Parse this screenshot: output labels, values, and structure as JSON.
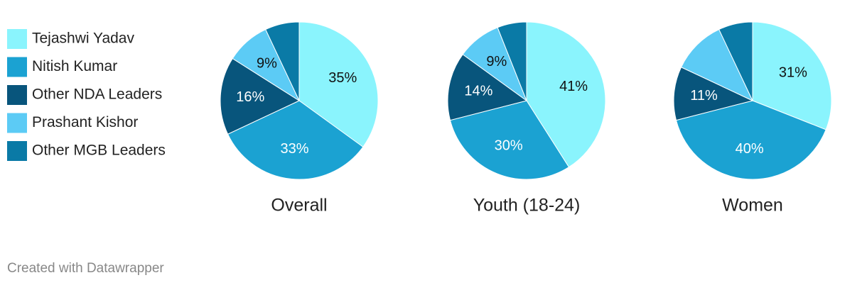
{
  "chart_data": [
    {
      "type": "pie",
      "title": "Overall",
      "categories": [
        "Tejashwi Yadav",
        "Nitish Kumar",
        "Other NDA Leaders",
        "Prashant Kishor",
        "Other MGB Leaders"
      ],
      "colors": [
        "#8af4fd",
        "#1ba2d2",
        "#08557c",
        "#5ccbf5",
        "#0a7aa6"
      ],
      "values": [
        35,
        33,
        16,
        9,
        7
      ],
      "value_labels": [
        "35%",
        "33%",
        "16%",
        "9%",
        null
      ]
    },
    {
      "type": "pie",
      "title": "Youth (18-24)",
      "categories": [
        "Tejashwi Yadav",
        "Nitish Kumar",
        "Other NDA Leaders",
        "Prashant Kishor",
        "Other MGB Leaders"
      ],
      "colors": [
        "#8af4fd",
        "#1ba2d2",
        "#08557c",
        "#5ccbf5",
        "#0a7aa6"
      ],
      "values": [
        41,
        30,
        14,
        9,
        6
      ],
      "value_labels": [
        "41%",
        "30%",
        "14%",
        "9%",
        null
      ]
    },
    {
      "type": "pie",
      "title": "Women",
      "categories": [
        "Tejashwi Yadav",
        "Nitish Kumar",
        "Other NDA Leaders",
        "Prashant Kishor",
        "Other MGB Leaders"
      ],
      "colors": [
        "#8af4fd",
        "#1ba2d2",
        "#08557c",
        "#5ccbf5",
        "#0a7aa6"
      ],
      "values": [
        31,
        40,
        11,
        11,
        7
      ],
      "value_labels": [
        "31%",
        "40%",
        "11%",
        null,
        null
      ]
    }
  ],
  "credit": "Created with Datawrapper"
}
